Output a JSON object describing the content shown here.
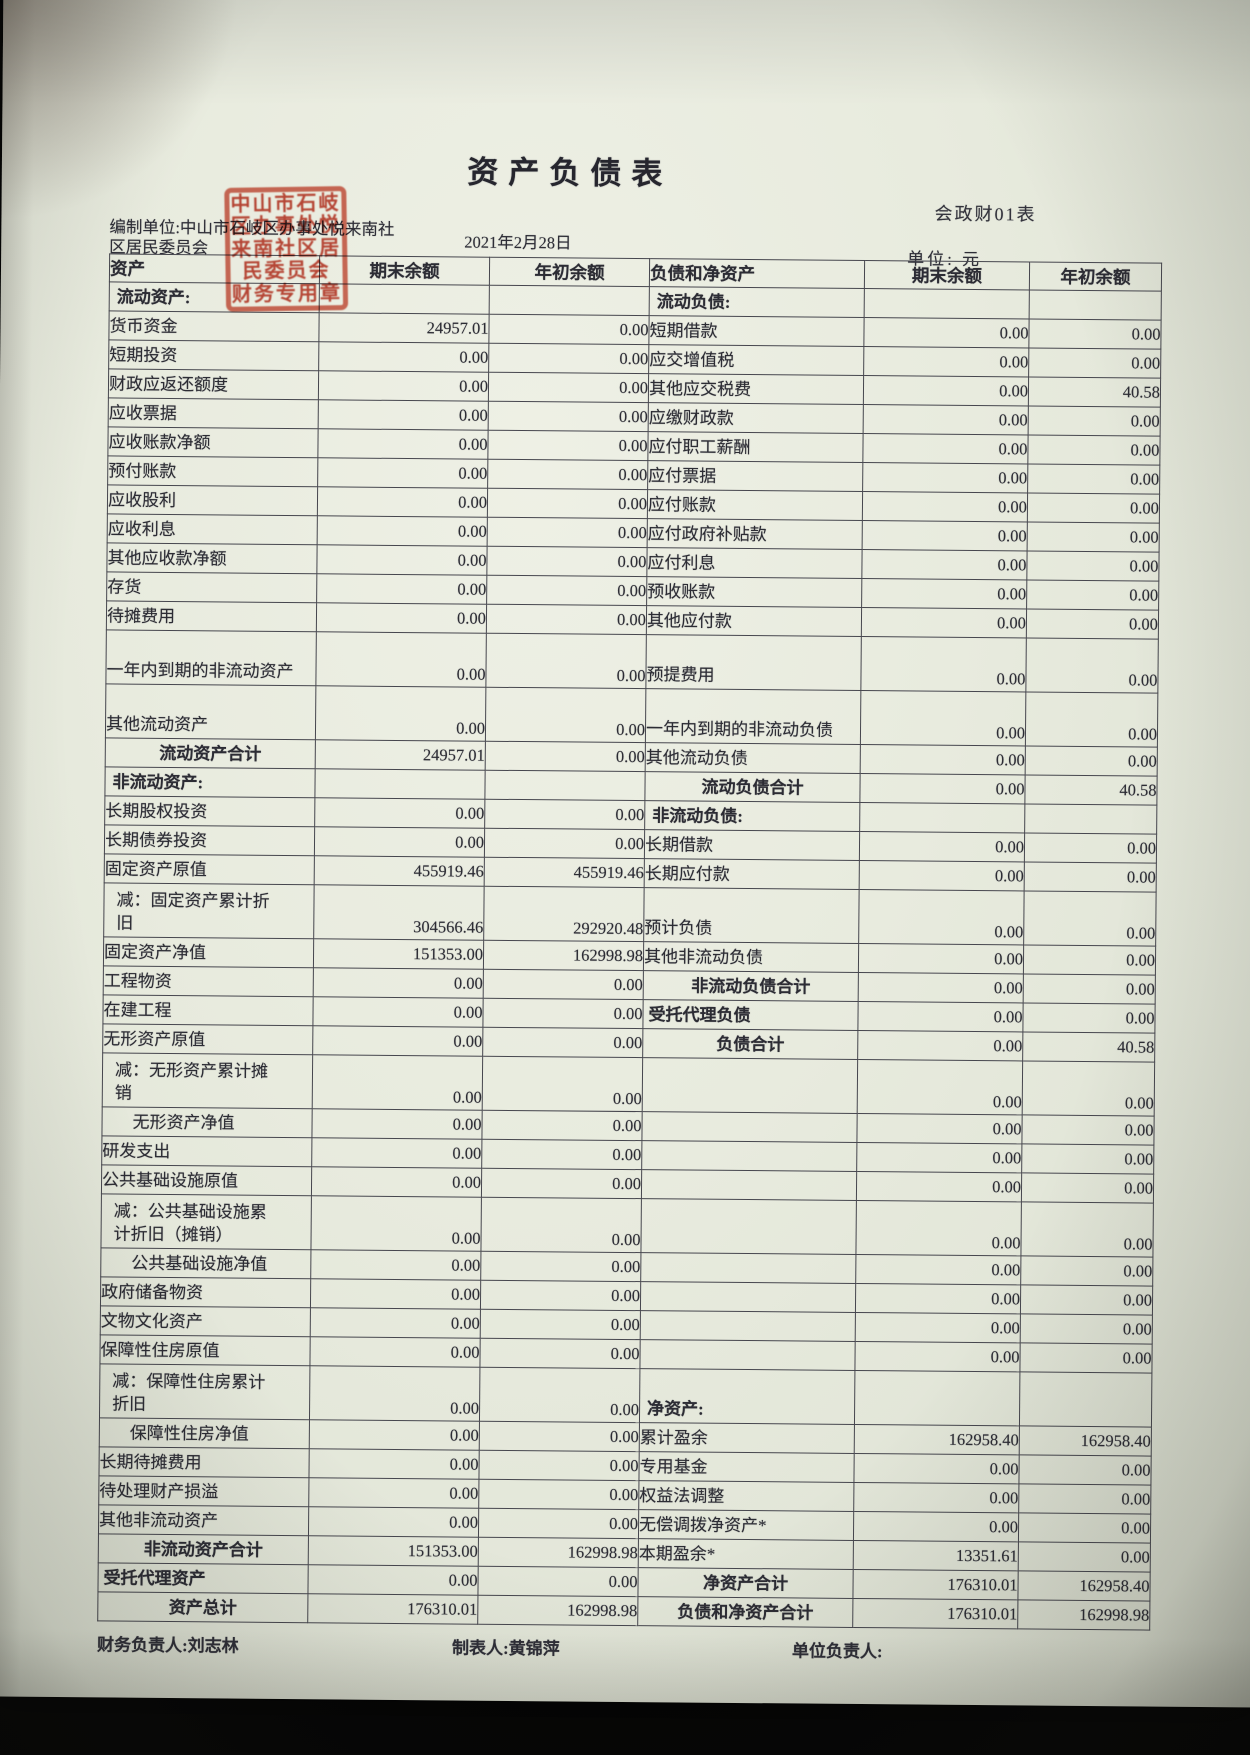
{
  "page": {
    "title": "资产负债表",
    "form_code": "会政财01表",
    "prepared_by_line1": "编制单位:中山市石岐区办事处悦来南社",
    "prepared_by_line2": "区居民委员会",
    "report_date": "2021年2月28日",
    "unit_label": "单位: 元",
    "stamp_lines": [
      "中山市石岐",
      "区办事处悦",
      "来南社区居",
      "民委员会",
      "财务专用章"
    ],
    "footer": {
      "finance_officer": "财务负责人:刘志林",
      "preparer": "制表人:黄锦萍",
      "unit_head": "单位负责人:"
    },
    "colors": {
      "stamp_red": "#c0341f",
      "paper": "#e7eadd",
      "ink": "#2c2c34"
    }
  },
  "table": {
    "headers": [
      "资产",
      "期末余额",
      "年初余额",
      "负债和净资产",
      "期末余额",
      "年初余额"
    ],
    "rows": [
      {
        "la": "流动资产:",
        "lt": "sec",
        "le": "",
        "lb": "",
        "ra": "流动负债:",
        "rt": "sec",
        "re": "",
        "rb": ""
      },
      {
        "la": "货币资金",
        "le": "24957.01",
        "lb": "0.00",
        "ra": "短期借款",
        "re": "0.00",
        "rb": "0.00"
      },
      {
        "la": "短期投资",
        "le": "0.00",
        "lb": "0.00",
        "ra": "应交增值税",
        "re": "0.00",
        "rb": "0.00"
      },
      {
        "la": "财政应返还额度",
        "le": "0.00",
        "lb": "0.00",
        "ra": "其他应交税费",
        "re": "0.00",
        "rb": "40.58"
      },
      {
        "la": "应收票据",
        "le": "0.00",
        "lb": "0.00",
        "ra": "应缴财政款",
        "re": "0.00",
        "rb": "0.00"
      },
      {
        "la": "应收账款净额",
        "le": "0.00",
        "lb": "0.00",
        "ra": "应付职工薪酬",
        "re": "0.00",
        "rb": "0.00"
      },
      {
        "la": "预付账款",
        "le": "0.00",
        "lb": "0.00",
        "ra": "应付票据",
        "re": "0.00",
        "rb": "0.00"
      },
      {
        "la": "应收股利",
        "le": "0.00",
        "lb": "0.00",
        "ra": "应付账款",
        "re": "0.00",
        "rb": "0.00"
      },
      {
        "la": "应收利息",
        "le": "0.00",
        "lb": "0.00",
        "ra": "应付政府补贴款",
        "re": "0.00",
        "rb": "0.00"
      },
      {
        "la": "其他应收款净额",
        "le": "0.00",
        "lb": "0.00",
        "ra": "应付利息",
        "re": "0.00",
        "rb": "0.00"
      },
      {
        "la": "存货",
        "le": "0.00",
        "lb": "0.00",
        "ra": "预收账款",
        "re": "0.00",
        "rb": "0.00"
      },
      {
        "la": "待摊费用",
        "le": "0.00",
        "lb": "0.00",
        "ra": "其他应付款",
        "re": "0.00",
        "rb": "0.00"
      },
      {
        "la": "一年内到期的非流动资产",
        "le": "0.00",
        "lb": "0.00",
        "ra": "预提费用",
        "re": "0.00",
        "rb": "0.00",
        "h": 2
      },
      {
        "la": "其他流动资产",
        "le": "0.00",
        "lb": "0.00",
        "ra": "一年内到期的非流动负债",
        "re": "0.00",
        "rb": "0.00",
        "h": 2
      },
      {
        "la": "流动资产合计",
        "lt": "tot",
        "le": "24957.01",
        "lb": "0.00",
        "ra": "其他流动负债",
        "re": "0.00",
        "rb": "0.00"
      },
      {
        "la": "非流动资产:",
        "lt": "sec",
        "le": "",
        "lb": "",
        "ra": "流动负债合计",
        "rt": "tot",
        "re": "0.00",
        "rb": "40.58"
      },
      {
        "la": "长期股权投资",
        "le": "0.00",
        "lb": "0.00",
        "ra": "非流动负债:",
        "rt": "sec",
        "re": "",
        "rb": ""
      },
      {
        "la": "长期债券投资",
        "le": "0.00",
        "lb": "0.00",
        "ra": "长期借款",
        "re": "0.00",
        "rb": "0.00"
      },
      {
        "la": "固定资产原值",
        "le": "455919.46",
        "lb": "455919.46",
        "ra": "长期应付款",
        "re": "0.00",
        "rb": "0.00"
      },
      {
        "la": "减：固定资产累计折旧",
        "lt": "dec",
        "le": "304566.46",
        "lb": "292920.48",
        "ra": "预计负债",
        "re": "0.00",
        "rb": "0.00",
        "h": 2
      },
      {
        "la": "固定资产净值",
        "le": "151353.00",
        "lb": "162998.98",
        "ra": "其他非流动负债",
        "re": "0.00",
        "rb": "0.00"
      },
      {
        "la": "工程物资",
        "le": "0.00",
        "lb": "0.00",
        "ra": "非流动负债合计",
        "rt": "tot",
        "re": "0.00",
        "rb": "0.00"
      },
      {
        "la": "在建工程",
        "le": "0.00",
        "lb": "0.00",
        "ra": "受托代理负债",
        "rt": "str",
        "re": "0.00",
        "rb": "0.00"
      },
      {
        "la": "无形资产原值",
        "le": "0.00",
        "lb": "0.00",
        "ra": "负债合计",
        "rt": "tot",
        "re": "0.00",
        "rb": "40.58"
      },
      {
        "la": "减：无形资产累计摊销",
        "lt": "dec",
        "le": "0.00",
        "lb": "0.00",
        "ra": "",
        "re": "0.00",
        "rb": "0.00",
        "h": 2
      },
      {
        "la": "无形资产净值",
        "lt": "ind2",
        "le": "0.00",
        "lb": "0.00",
        "ra": "",
        "re": "0.00",
        "rb": "0.00"
      },
      {
        "la": "研发支出",
        "le": "0.00",
        "lb": "0.00",
        "ra": "",
        "re": "0.00",
        "rb": "0.00"
      },
      {
        "la": "公共基础设施原值",
        "le": "0.00",
        "lb": "0.00",
        "ra": "",
        "re": "0.00",
        "rb": "0.00"
      },
      {
        "la": "减：公共基础设施累计折旧（摊销）",
        "lt": "dec",
        "le": "0.00",
        "lb": "0.00",
        "ra": "",
        "re": "0.00",
        "rb": "0.00",
        "h": 2
      },
      {
        "la": "公共基础设施净值",
        "lt": "ind2",
        "le": "0.00",
        "lb": "0.00",
        "ra": "",
        "re": "0.00",
        "rb": "0.00"
      },
      {
        "la": "政府储备物资",
        "le": "0.00",
        "lb": "0.00",
        "ra": "",
        "re": "0.00",
        "rb": "0.00"
      },
      {
        "la": "文物文化资产",
        "le": "0.00",
        "lb": "0.00",
        "ra": "",
        "re": "0.00",
        "rb": "0.00"
      },
      {
        "la": "保障性住房原值",
        "le": "0.00",
        "lb": "0.00",
        "ra": "",
        "re": "0.00",
        "rb": "0.00"
      },
      {
        "la": "减：保障性住房累计折旧",
        "lt": "dec",
        "le": "0.00",
        "lb": "0.00",
        "ra": "净资产:",
        "rt": "sec",
        "re": "",
        "rb": "",
        "h": 2
      },
      {
        "la": "保障性住房净值",
        "lt": "ind2",
        "le": "0.00",
        "lb": "0.00",
        "ra": "累计盈余",
        "re": "162958.40",
        "rb": "162958.40"
      },
      {
        "la": "长期待摊费用",
        "le": "0.00",
        "lb": "0.00",
        "ra": "专用基金",
        "re": "0.00",
        "rb": "0.00"
      },
      {
        "la": "待处理财产损溢",
        "le": "0.00",
        "lb": "0.00",
        "ra": "权益法调整",
        "re": "0.00",
        "rb": "0.00"
      },
      {
        "la": "其他非流动资产",
        "le": "0.00",
        "lb": "0.00",
        "ra": "无偿调拨净资产*",
        "re": "0.00",
        "rb": "0.00"
      },
      {
        "la": "非流动资产合计",
        "lt": "tot",
        "le": "151353.00",
        "lb": "162998.98",
        "ra": "本期盈余*",
        "re": "13351.61",
        "rb": "0.00"
      },
      {
        "la": "受托代理资产",
        "lt": "str",
        "le": "0.00",
        "lb": "0.00",
        "ra": "净资产合计",
        "rt": "tot",
        "re": "176310.01",
        "rb": "162958.40"
      },
      {
        "la": "资产总计",
        "lt": "tot",
        "le": "176310.01",
        "lb": "162998.98",
        "ra": "负债和净资产合计",
        "rt": "tot",
        "re": "176310.01",
        "rb": "162998.98"
      }
    ]
  }
}
